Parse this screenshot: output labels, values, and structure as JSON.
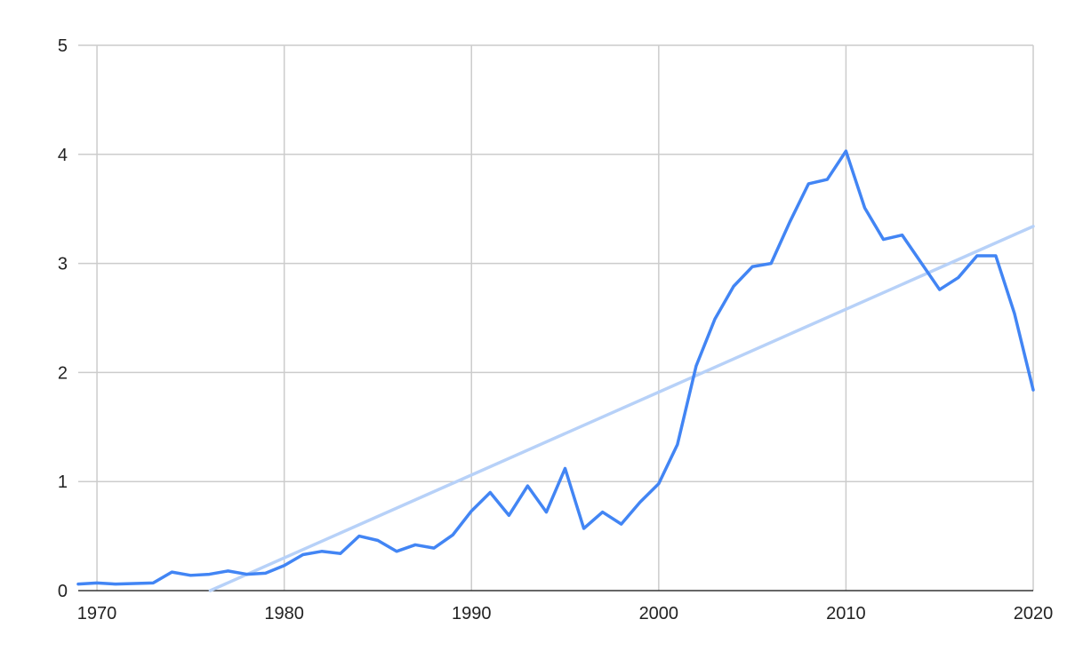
{
  "chart_data": {
    "type": "line",
    "title": "",
    "xlabel": "",
    "ylabel": "",
    "xlim": [
      1969,
      2020
    ],
    "ylim": [
      0,
      5
    ],
    "x_ticks": [
      1970,
      1980,
      1990,
      2000,
      2010,
      2020
    ],
    "y_ticks": [
      0,
      1,
      2,
      3,
      4,
      5
    ],
    "grid": true,
    "legend": "none",
    "series": [
      {
        "color": "#4285F4",
        "x": [
          1969,
          1970,
          1971,
          1972,
          1973,
          1974,
          1975,
          1976,
          1977,
          1978,
          1979,
          1980,
          1981,
          1982,
          1983,
          1984,
          1985,
          1986,
          1987,
          1988,
          1989,
          1990,
          1991,
          1992,
          1993,
          1994,
          1995,
          1996,
          1997,
          1998,
          1999,
          2000,
          2001,
          2002,
          2003,
          2004,
          2005,
          2006,
          2007,
          2008,
          2009,
          2010,
          2011,
          2012,
          2013,
          2014,
          2015,
          2016,
          2017,
          2018,
          2019,
          2020
        ],
        "values": [
          0.06,
          0.07,
          0.06,
          0.065,
          0.07,
          0.17,
          0.14,
          0.15,
          0.18,
          0.15,
          0.16,
          0.23,
          0.33,
          0.36,
          0.34,
          0.5,
          0.46,
          0.36,
          0.42,
          0.39,
          0.51,
          0.73,
          0.9,
          0.69,
          0.96,
          0.72,
          1.12,
          0.57,
          0.72,
          0.61,
          0.81,
          0.98,
          1.34,
          2.06,
          2.49,
          2.79,
          2.97,
          3.0,
          3.38,
          3.73,
          3.77,
          4.03,
          3.51,
          3.22,
          3.26,
          3.01,
          2.76,
          2.87,
          3.07,
          3.07,
          2.54,
          1.84
        ]
      }
    ],
    "trendline": {
      "color": "#B7D1F8",
      "x": [
        1976.05,
        2020
      ],
      "values": [
        0.0,
        3.34
      ]
    }
  }
}
